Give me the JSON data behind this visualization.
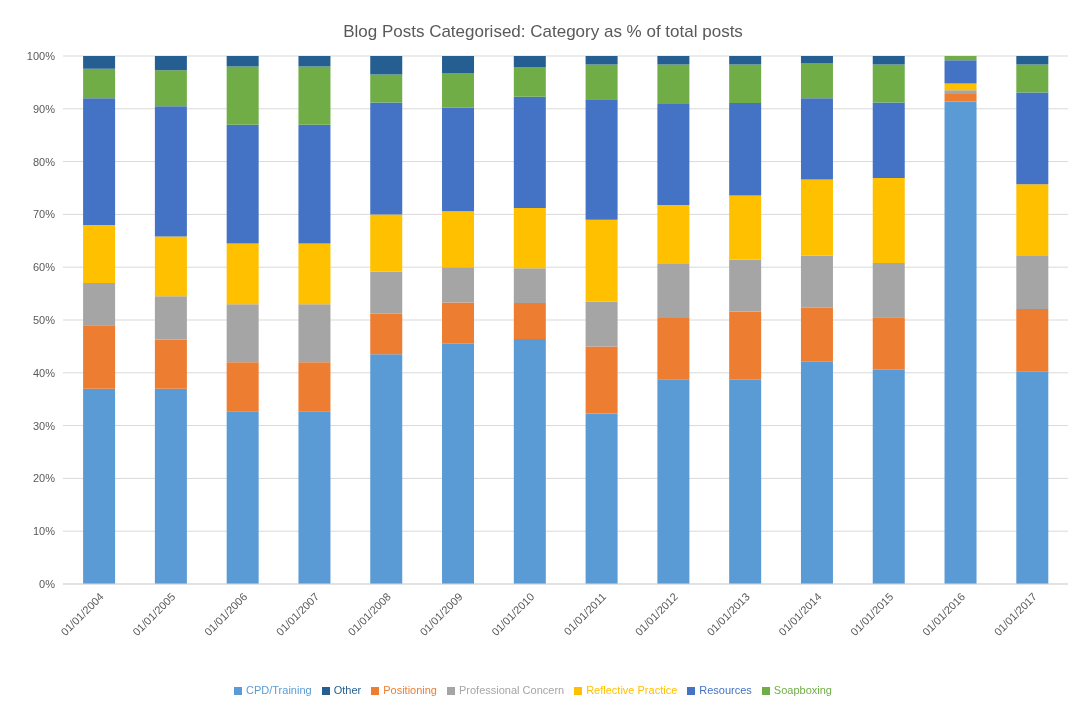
{
  "chart_data": {
    "type": "bar",
    "title": "Blog Posts Categorised: Category as % of total posts",
    "stacked": true,
    "grid": "y",
    "legend": "bottom",
    "categories": [
      "01/01/2004",
      "01/01/2005",
      "01/01/2006",
      "01/01/2007",
      "01/01/2008",
      "01/01/2009",
      "01/01/2010",
      "01/01/2011",
      "01/01/2012",
      "01/01/2013",
      "01/01/2014",
      "01/01/2015",
      "01/01/2016",
      "01/01/2017"
    ],
    "ylim": [
      0,
      100
    ],
    "yticks": [
      {
        "value": 0,
        "label": "0%"
      },
      {
        "value": 10,
        "label": "10%"
      },
      {
        "value": 20,
        "label": "20%"
      },
      {
        "value": 30,
        "label": "30%"
      },
      {
        "value": 40,
        "label": "40%"
      },
      {
        "value": 50,
        "label": "50%"
      },
      {
        "value": 60,
        "label": "60%"
      },
      {
        "value": 70,
        "label": "70%"
      },
      {
        "value": 80,
        "label": "80%"
      },
      {
        "value": 90,
        "label": "90%"
      },
      {
        "value": 100,
        "label": "100%"
      }
    ],
    "series": [
      {
        "name": "CPD/Training",
        "color": "#5b9bd5",
        "values": [
          37,
          37,
          32.7,
          32.7,
          43.5,
          45.5,
          46.4,
          32.3,
          38.8,
          38.7,
          42.1,
          40.6,
          91.4,
          40.3
        ]
      },
      {
        "name": "Positioning",
        "color": "#ed7d31",
        "values": [
          12,
          9.3,
          9.3,
          9.3,
          7.7,
          7.8,
          6.8,
          12.7,
          11.6,
          12.9,
          10.2,
          9.9,
          1.4,
          11.8
        ]
      },
      {
        "name": "Professional Concern",
        "color": "#a5a5a5",
        "values": [
          8,
          8.2,
          11,
          11,
          8,
          6.7,
          6.6,
          8.5,
          10.2,
          9.8,
          9.9,
          10.3,
          0.7,
          10
        ]
      },
      {
        "name": "Reflective Practice",
        "color": "#ffc000",
        "values": [
          11,
          11.3,
          11.5,
          11.5,
          10.8,
          10.6,
          11.4,
          15.5,
          11.2,
          12.2,
          14.4,
          16.1,
          1.3,
          13.6
        ]
      },
      {
        "name": "Resources",
        "color": "#4472c4",
        "values": [
          24,
          24.7,
          22.5,
          22.5,
          21.2,
          19.6,
          21.1,
          22.8,
          19.1,
          17.5,
          15.4,
          14.3,
          4.4,
          17.4
        ]
      },
      {
        "name": "Soapboxing",
        "color": "#70ad47",
        "values": [
          5.6,
          6.8,
          11,
          11,
          5.3,
          6.5,
          5.6,
          6.6,
          7.5,
          7.3,
          6.6,
          7.2,
          0.8,
          5.3
        ]
      },
      {
        "name": "Other",
        "color": "#255e91",
        "values": [
          2.4,
          2.7,
          2,
          2,
          3.5,
          3.3,
          2.1,
          1.6,
          1.6,
          1.6,
          1.4,
          1.6,
          0,
          1.6
        ]
      }
    ]
  }
}
